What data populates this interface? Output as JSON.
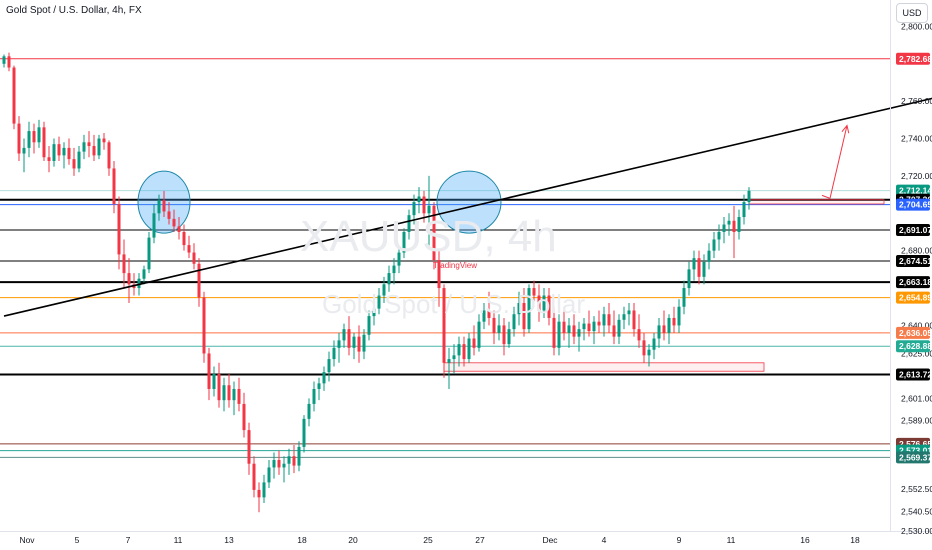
{
  "header": {
    "title": "Gold Spot / U.S. Dollar, 4h, FX",
    "currency_button": "USD"
  },
  "watermark": {
    "symbol": "XAUUSD, 4h",
    "name": "Gold Spot / U.S. Dollar"
  },
  "tv_label": "TradingView",
  "colors": {
    "up": "#089981",
    "down": "#f23645",
    "trendline": "#000000",
    "zone": "#f23645"
  },
  "chart_data": {
    "type": "candlestick",
    "title": "Gold Spot / U.S. Dollar, 4h, FX",
    "ylim": [
      2530,
      2812
    ],
    "price_ticks": [
      "2,800.00",
      "2,760.00",
      "2,740.00",
      "2,720.00",
      "2,680.00",
      "2,640.00",
      "2,625.00",
      "2,601.00",
      "2,589.00",
      "2,552.50",
      "2,540.50",
      "2,530.00"
    ],
    "x_labels": [
      "Nov",
      "5",
      "7",
      "11",
      "13",
      "18",
      "20",
      "25",
      "27",
      "Dec",
      "4",
      "9",
      "11",
      "16",
      "18"
    ],
    "levels": [
      {
        "price": 2782.68,
        "label": "2,782.68",
        "line": "#f23645",
        "tag_bg": "#f23645",
        "tag_fg": "#ffffff",
        "width": 1
      },
      {
        "price": 2712.14,
        "label": "2,712.14",
        "line": "#b2dfdb",
        "tag_bg": "#089981",
        "tag_fg": "#ffffff",
        "width": 1
      },
      {
        "price": 2707.26,
        "label": "2,707.26",
        "line": "#000000",
        "tag_bg": "#000000",
        "tag_fg": "#ffffff",
        "width": 2
      },
      {
        "price": 2704.65,
        "label": "2,704.65",
        "line": "#2962ff",
        "tag_bg": "#2962ff",
        "tag_fg": "#ffffff",
        "width": 1
      },
      {
        "price": 2691.07,
        "label": "2,691.07",
        "line": "#000000",
        "tag_bg": "#000000",
        "tag_fg": "#ffffff",
        "width": 1
      },
      {
        "price": 2674.51,
        "label": "2,674.51",
        "line": "#000000",
        "tag_bg": "#000000",
        "tag_fg": "#ffffff",
        "width": 1
      },
      {
        "price": 2663.18,
        "label": "2,663.18",
        "line": "#000000",
        "tag_bg": "#000000",
        "tag_fg": "#ffffff",
        "width": 2
      },
      {
        "price": 2654.89,
        "label": "2,654.89",
        "line": "#ff9800",
        "tag_bg": "#ff9800",
        "tag_fg": "#ffffff",
        "width": 1
      },
      {
        "price": 2636.05,
        "label": "2,636.05",
        "line": "#ff7043",
        "tag_bg": "#f57c4a",
        "tag_fg": "#ffffff",
        "width": 1
      },
      {
        "price": 2628.88,
        "label": "2,628.88",
        "line": "#4db6ac",
        "tag_bg": "#22ab94",
        "tag_fg": "#ffffff",
        "width": 1
      },
      {
        "price": 2613.72,
        "label": "2,613.72",
        "line": "#000000",
        "tag_bg": "#000000",
        "tag_fg": "#ffffff",
        "width": 2
      },
      {
        "price": 2576.65,
        "label": "2,576.65",
        "line": "#8d3b32",
        "tag_bg": "#7b3a33",
        "tag_fg": "#ffffff",
        "width": 1
      },
      {
        "price": 2573.01,
        "label": "2,573.01",
        "line": "#26a69a",
        "tag_bg": "#089981",
        "tag_fg": "#ffffff",
        "width": 1
      },
      {
        "price": 2569.37,
        "label": "2,569.37",
        "line": "#5b8f8a",
        "tag_bg": "#22776e",
        "tag_fg": "#ffffff",
        "width": 1
      }
    ],
    "trendline": [
      {
        "t": 0,
        "p": 2645.0
      },
      {
        "t": 1000,
        "p": 2770.5
      }
    ],
    "zones": [
      {
        "t0": 440,
        "t1": 760,
        "p_top": 2620.0,
        "p_bot": 2615.5
      },
      {
        "t0": 745,
        "t1": 880,
        "p_top": 2707.26,
        "p_bot": 2705.0
      }
    ],
    "circles": [
      {
        "t": 160,
        "p": 2706,
        "rx": 26,
        "ry": 31
      },
      {
        "t": 465,
        "p": 2706,
        "rx": 32,
        "ry": 31
      }
    ],
    "arrow": {
      "from": {
        "t": 826,
        "p": 2708
      },
      "to": {
        "t": 843,
        "p": 2747
      }
    },
    "candles": [
      [
        0,
        2780,
        2785,
        2778,
        2784
      ],
      [
        5,
        2784,
        2786,
        2776,
        2778
      ],
      [
        10,
        2778,
        2779,
        2745,
        2748
      ],
      [
        15,
        2748,
        2752,
        2728,
        2732
      ],
      [
        20,
        2732,
        2740,
        2722,
        2735
      ],
      [
        25,
        2735,
        2749,
        2730,
        2744
      ],
      [
        30,
        2744,
        2748,
        2732,
        2738
      ],
      [
        35,
        2738,
        2750,
        2735,
        2746
      ],
      [
        40,
        2746,
        2749,
        2728,
        2730
      ],
      [
        45,
        2730,
        2736,
        2722,
        2728
      ],
      [
        50,
        2728,
        2740,
        2725,
        2737
      ],
      [
        55,
        2737,
        2741,
        2728,
        2731
      ],
      [
        60,
        2731,
        2738,
        2724,
        2735
      ],
      [
        65,
        2735,
        2740,
        2726,
        2729
      ],
      [
        70,
        2729,
        2735,
        2720,
        2724
      ],
      [
        75,
        2724,
        2736,
        2722,
        2733
      ],
      [
        80,
        2733,
        2742,
        2729,
        2738
      ],
      [
        85,
        2738,
        2744,
        2730,
        2736
      ],
      [
        90,
        2736,
        2742,
        2728,
        2731
      ],
      [
        95,
        2731,
        2742,
        2729,
        2740
      ],
      [
        100,
        2740,
        2743,
        2734,
        2738
      ],
      [
        105,
        2738,
        2739,
        2720,
        2724
      ],
      [
        110,
        2724,
        2728,
        2700,
        2705
      ],
      [
        115,
        2705,
        2709,
        2670,
        2678
      ],
      [
        120,
        2678,
        2686,
        2660,
        2668
      ],
      [
        125,
        2668,
        2676,
        2652,
        2662
      ],
      [
        130,
        2662,
        2668,
        2656,
        2660
      ],
      [
        135,
        2660,
        2668,
        2656,
        2665
      ],
      [
        140,
        2665,
        2672,
        2662,
        2670
      ],
      [
        145,
        2670,
        2690,
        2668,
        2687
      ],
      [
        150,
        2687,
        2705,
        2684,
        2700
      ],
      [
        155,
        2700,
        2710,
        2696,
        2707
      ],
      [
        160,
        2707,
        2712,
        2698,
        2701
      ],
      [
        165,
        2701,
        2706,
        2694,
        2697
      ],
      [
        170,
        2697,
        2702,
        2690,
        2693
      ],
      [
        175,
        2693,
        2698,
        2686,
        2690
      ],
      [
        180,
        2690,
        2694,
        2680,
        2683
      ],
      [
        185,
        2683,
        2688,
        2676,
        2679
      ],
      [
        190,
        2679,
        2684,
        2670,
        2673
      ],
      [
        195,
        2673,
        2676,
        2650,
        2655
      ],
      [
        200,
        2655,
        2658,
        2620,
        2625
      ],
      [
        205,
        2625,
        2628,
        2600,
        2606
      ],
      [
        210,
        2606,
        2618,
        2602,
        2614
      ],
      [
        215,
        2614,
        2620,
        2596,
        2600
      ],
      [
        220,
        2600,
        2612,
        2594,
        2608
      ],
      [
        225,
        2608,
        2614,
        2596,
        2600
      ],
      [
        230,
        2600,
        2610,
        2592,
        2606
      ],
      [
        235,
        2606,
        2612,
        2594,
        2598
      ],
      [
        240,
        2598,
        2604,
        2580,
        2584
      ],
      [
        245,
        2584,
        2588,
        2560,
        2566
      ],
      [
        250,
        2566,
        2570,
        2548,
        2552
      ],
      [
        255,
        2552,
        2556,
        2540,
        2548
      ],
      [
        260,
        2548,
        2560,
        2545,
        2556
      ],
      [
        265,
        2556,
        2568,
        2553,
        2564
      ],
      [
        270,
        2564,
        2572,
        2558,
        2568
      ],
      [
        275,
        2568,
        2573,
        2560,
        2564
      ],
      [
        280,
        2564,
        2570,
        2556,
        2566
      ],
      [
        285,
        2566,
        2574,
        2560,
        2570
      ],
      [
        290,
        2570,
        2576,
        2561,
        2565
      ],
      [
        295,
        2565,
        2578,
        2562,
        2575
      ],
      [
        300,
        2575,
        2592,
        2572,
        2590
      ],
      [
        305,
        2590,
        2601,
        2586,
        2598
      ],
      [
        310,
        2598,
        2610,
        2594,
        2606
      ],
      [
        315,
        2606,
        2612,
        2600,
        2609
      ],
      [
        320,
        2609,
        2618,
        2605,
        2615
      ],
      [
        325,
        2615,
        2626,
        2610,
        2622
      ],
      [
        330,
        2622,
        2632,
        2618,
        2628
      ],
      [
        335,
        2628,
        2636,
        2620,
        2632
      ],
      [
        340,
        2632,
        2641,
        2628,
        2638
      ],
      [
        345,
        2638,
        2645,
        2624,
        2628
      ],
      [
        350,
        2628,
        2636,
        2622,
        2634
      ],
      [
        355,
        2634,
        2640,
        2620,
        2626
      ],
      [
        360,
        2626,
        2638,
        2622,
        2635
      ],
      [
        365,
        2635,
        2648,
        2632,
        2645
      ],
      [
        370,
        2645,
        2652,
        2640,
        2649
      ],
      [
        375,
        2649,
        2660,
        2646,
        2656
      ],
      [
        380,
        2656,
        2666,
        2652,
        2662
      ],
      [
        385,
        2662,
        2672,
        2658,
        2668
      ],
      [
        390,
        2668,
        2676,
        2662,
        2672
      ],
      [
        395,
        2672,
        2682,
        2668,
        2679
      ],
      [
        400,
        2679,
        2692,
        2676,
        2690
      ],
      [
        405,
        2690,
        2702,
        2686,
        2699
      ],
      [
        410,
        2699,
        2710,
        2694,
        2706
      ],
      [
        415,
        2706,
        2714,
        2700,
        2709
      ],
      [
        420,
        2709,
        2712,
        2695,
        2700
      ],
      [
        425,
        2700,
        2720,
        2682,
        2704
      ],
      [
        430,
        2704,
        2706,
        2670,
        2675
      ],
      [
        435,
        2675,
        2680,
        2650,
        2660
      ],
      [
        440,
        2660,
        2662,
        2612,
        2620
      ],
      [
        445,
        2620,
        2628,
        2606,
        2622
      ],
      [
        450,
        2622,
        2630,
        2614,
        2624
      ],
      [
        455,
        2624,
        2634,
        2618,
        2630
      ],
      [
        460,
        2630,
        2634,
        2618,
        2622
      ],
      [
        465,
        2622,
        2636,
        2620,
        2633
      ],
      [
        470,
        2633,
        2640,
        2624,
        2628
      ],
      [
        475,
        2628,
        2646,
        2626,
        2642
      ],
      [
        480,
        2642,
        2652,
        2638,
        2648
      ],
      [
        485,
        2648,
        2658,
        2640,
        2644
      ],
      [
        490,
        2644,
        2648,
        2630,
        2636
      ],
      [
        495,
        2636,
        2646,
        2632,
        2640
      ],
      [
        500,
        2640,
        2644,
        2624,
        2630
      ],
      [
        505,
        2630,
        2642,
        2628,
        2638
      ],
      [
        510,
        2638,
        2650,
        2634,
        2646
      ],
      [
        515,
        2646,
        2658,
        2640,
        2652
      ],
      [
        520,
        2652,
        2660,
        2634,
        2638
      ],
      [
        525,
        2638,
        2662,
        2636,
        2660
      ],
      [
        530,
        2660,
        2664,
        2650,
        2656
      ],
      [
        535,
        2656,
        2662,
        2642,
        2648
      ],
      [
        540,
        2648,
        2660,
        2644,
        2656
      ],
      [
        545,
        2656,
        2660,
        2640,
        2644
      ],
      [
        550,
        2644,
        2650,
        2624,
        2628
      ],
      [
        555,
        2628,
        2646,
        2624,
        2642
      ],
      [
        560,
        2642,
        2650,
        2632,
        2636
      ],
      [
        565,
        2636,
        2644,
        2628,
        2640
      ],
      [
        570,
        2640,
        2646,
        2630,
        2634
      ],
      [
        575,
        2634,
        2642,
        2626,
        2638
      ],
      [
        580,
        2638,
        2644,
        2632,
        2641
      ],
      [
        585,
        2641,
        2648,
        2634,
        2637
      ],
      [
        590,
        2637,
        2645,
        2630,
        2642
      ],
      [
        595,
        2642,
        2648,
        2636,
        2640
      ],
      [
        600,
        2640,
        2650,
        2634,
        2646
      ],
      [
        605,
        2646,
        2652,
        2636,
        2640
      ],
      [
        610,
        2640,
        2648,
        2630,
        2634
      ],
      [
        615,
        2634,
        2646,
        2630,
        2643
      ],
      [
        620,
        2643,
        2650,
        2638,
        2646
      ],
      [
        625,
        2646,
        2652,
        2640,
        2648
      ],
      [
        630,
        2648,
        2652,
        2634,
        2638
      ],
      [
        635,
        2638,
        2646,
        2628,
        2632
      ],
      [
        640,
        2632,
        2636,
        2620,
        2624
      ],
      [
        645,
        2624,
        2630,
        2618,
        2627
      ],
      [
        650,
        2627,
        2636,
        2622,
        2633
      ],
      [
        655,
        2633,
        2644,
        2628,
        2640
      ],
      [
        660,
        2640,
        2648,
        2632,
        2636
      ],
      [
        665,
        2636,
        2646,
        2630,
        2644
      ],
      [
        670,
        2644,
        2650,
        2636,
        2640
      ],
      [
        675,
        2640,
        2654,
        2636,
        2650
      ],
      [
        680,
        2650,
        2664,
        2646,
        2660
      ],
      [
        685,
        2660,
        2674,
        2656,
        2670
      ],
      [
        690,
        2670,
        2680,
        2664,
        2676
      ],
      [
        695,
        2676,
        2680,
        2662,
        2666
      ],
      [
        700,
        2666,
        2678,
        2662,
        2674
      ],
      [
        705,
        2674,
        2684,
        2670,
        2680
      ],
      [
        710,
        2680,
        2690,
        2676,
        2686
      ],
      [
        715,
        2686,
        2694,
        2680,
        2690
      ],
      [
        720,
        2690,
        2698,
        2684,
        2694
      ],
      [
        725,
        2694,
        2700,
        2688,
        2696
      ],
      [
        730,
        2696,
        2704,
        2676,
        2690
      ],
      [
        735,
        2690,
        2702,
        2686,
        2698
      ],
      [
        740,
        2698,
        2710,
        2694,
        2706
      ],
      [
        745,
        2706,
        2714,
        2702,
        2712
      ]
    ]
  }
}
